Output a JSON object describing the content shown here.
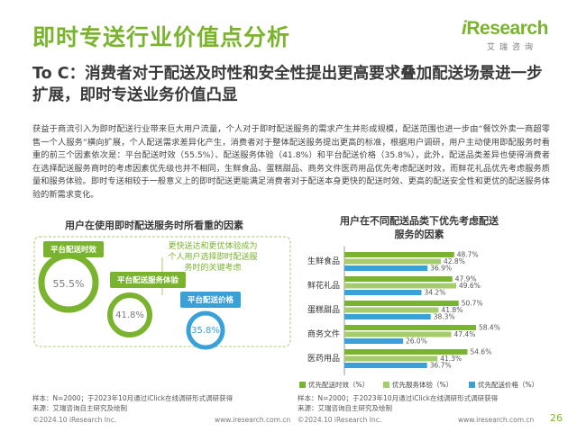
{
  "header": {
    "title": "即时专送行业价值点分析",
    "logo_word_i": "i",
    "logo_word_rest": "Research",
    "logo_sub": "艾瑞咨询"
  },
  "subtitle": "To C：消费者对于配送及时性和安全性提出更高要求叠加配送场景进一步扩展，即时专送业务价值凸显",
  "body_text": "获益于商流引入为即时配送行业带来巨大用户流量，个人对于即时配送服务的需求产生井形成规模，配送范围也进一步由“餐饮外卖一商超零售一个人服务”横向扩展，个人配送需求差异化产生，消费者对于整体配送服务提出更高的标准，根据用户调研，用户主动使用即配服务时看重的前三个因素依次是：平台配送时效（55.5%）、配送服务体验（41.8%）和平台配送价格（35.8%），此外，配送品类差异也使得消费者在选择配送服务商时的考虑因素优先级也并不相同，生鲜食品、蛋糕甜品、商务文件医药用品优先考虑配送时效，而鲜花礼品优先考虑服务质量和服务体验。即时专送相较于一般意义上的即时配送更能满足消费者对于配送本身更快的配送时效、更高的配送安全性和更优的配送服务体验的新需求变化。",
  "left_panel": {
    "title": "用户在使用即时配送服务时所看重的因素",
    "factors": [
      {
        "label": "平台配送时效",
        "value": 55.5,
        "value_text": "55.5%"
      },
      {
        "label": "平台配送服务体验",
        "value": 41.8,
        "value_text": "41.8%"
      },
      {
        "label": "平台配送价格",
        "value": 35.8,
        "value_text": "35.8%"
      }
    ],
    "callout": "更快送达和更优体验成为个人用户选择即时配送服务时的关键考虑",
    "note_sample": "样本：N=2000；于2023年10月通过iClick在线调研形式调研获得",
    "note_source": "来源：艾瑞咨询自主研究及绘制",
    "footer_left": "©2024.10 iResearch Inc.",
    "footer_right": "www.iresearch.com.cn"
  },
  "right_panel": {
    "title_line1": "用户在不同配送品类下优先考虑配送",
    "title_line2": "服务的因素",
    "note_sample": "样本：N=2000；于2023年10月通过iClick在线调研形式调研获得",
    "note_source": "来源：艾瑞咨询自主研究及绘制",
    "footer_left": "©2024.10 iResearch Inc.",
    "footer_right": "www.iresearch.com.cn",
    "page_number": "26"
  },
  "chart_data": {
    "type": "bar",
    "orientation": "horizontal",
    "categories": [
      "生鲜食品",
      "鲜花礼品",
      "蛋糕甜品",
      "商务文件",
      "医药用品"
    ],
    "series": [
      {
        "name": "优先配送时效（%）",
        "color": "#7ab32e",
        "values": [
          48.7,
          47.9,
          50.7,
          58.4,
          54.6
        ]
      },
      {
        "name": "优先服务体验（%）",
        "color": "#a6cd6b",
        "values": [
          42.8,
          49.6,
          41.8,
          47.4,
          41.3
        ]
      },
      {
        "name": "优先配送价格（%）",
        "color": "#3aa0d8",
        "values": [
          36.9,
          34.2,
          38.3,
          26.0,
          36.7
        ]
      }
    ],
    "value_labels": [
      [
        "48.7%",
        "42.8%",
        "36.9%"
      ],
      [
        "47.9%",
        "49.6%",
        "34.2%"
      ],
      [
        "50.7%",
        "41.8%",
        "38.3%"
      ],
      [
        "58.4%",
        "47.4%",
        "26.0%"
      ],
      [
        "54.6%",
        "41.3%",
        "36.7%"
      ]
    ],
    "xlim": [
      0,
      70
    ],
    "grid": false,
    "legend_position": "bottom"
  },
  "colors": {
    "brand_green": "#7ab32e",
    "light_green": "#a6cd6b",
    "blue": "#3aa0d8"
  }
}
